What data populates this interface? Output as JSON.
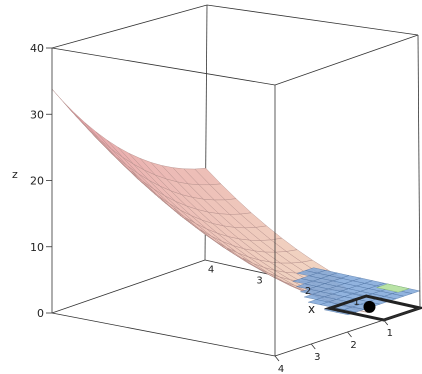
{
  "chart_data": {
    "type": "surface3d",
    "title": "",
    "xlabel": "x",
    "ylabel": "",
    "zlabel": "z",
    "z_ticks": [
      "0",
      "10",
      "20",
      "30",
      "40"
    ],
    "x_ticks": [
      "1",
      "2",
      "3",
      "4"
    ],
    "y_ticks": [
      "1",
      "2",
      "3",
      "4"
    ],
    "xlim": [
      0,
      4
    ],
    "ylim": [
      0,
      4
    ],
    "zlim": [
      0,
      40
    ],
    "surface": {
      "description_free_values": true,
      "z_at_x0_y4": 28,
      "z_at_x2_y2": 4.5,
      "z_at_x0_y0": 0,
      "near_plane_z": 2.5
    },
    "plane": {
      "z": 2.5,
      "color": "#7ea6d8"
    },
    "constraint_region": {
      "x": [
        0,
        1
      ],
      "y": [
        0,
        1
      ],
      "z": 0
    },
    "point": {
      "x": 0.5,
      "y": 0.6,
      "z": 0
    },
    "colors": {
      "surface_high": "#e7a0a8",
      "surface_low": "#f2d9c4",
      "surface_lines": "#b08a86",
      "plane": "#7ea6d8",
      "plane_lines": "#4b6f9e",
      "box": "#333333",
      "region": "#222222",
      "point": "#000000",
      "green_patch": "#b9e3a6"
    }
  }
}
